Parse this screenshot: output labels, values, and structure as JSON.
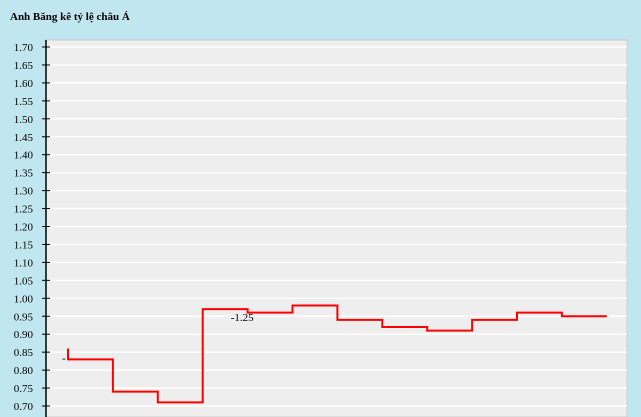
{
  "title": "Anh Băng kê tỷ lệ châu Á",
  "chart_data": {
    "type": "line",
    "step": true,
    "title": "Anh Băng kê tỷ lệ châu Á",
    "ylim": [
      0.7,
      1.7
    ],
    "yticks": [
      "1.70",
      "1.65",
      "1.60",
      "1.55",
      "1.50",
      "1.45",
      "1.40",
      "1.35",
      "1.30",
      "1.25",
      "1.20",
      "1.15",
      "1.10",
      "1.05",
      "1.00",
      "0.95",
      "0.90",
      "0.85",
      "0.80",
      "0.75",
      "0.70"
    ],
    "grid": true,
    "start_value": 0.86,
    "values": [
      0.83,
      0.74,
      0.71,
      0.97,
      0.96,
      0.98,
      0.94,
      0.92,
      0.91,
      0.94,
      0.96,
      0.95
    ],
    "color": "#ff0000",
    "annotations": [
      {
        "index": 0,
        "text": "-"
      },
      {
        "index": 3,
        "text": "-1.25"
      }
    ]
  }
}
